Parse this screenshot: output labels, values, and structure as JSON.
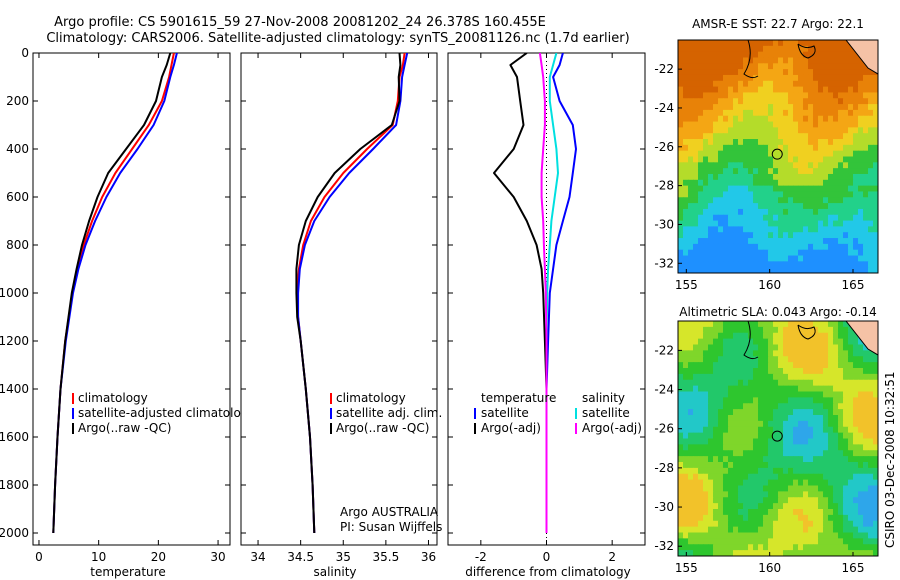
{
  "header": {
    "title_line1": "Argo profile: CS 5901615_59 27-Nov-2008 20081202_24 26.378S 160.455E",
    "title_line2": "Climatology: CARS2006. Satellite-adjusted climatology: synTS_20081126.nc (1.7d earlier)"
  },
  "credit": {
    "org": "Argo AUSTRALIA",
    "pi": "PI: Susan Wijffels",
    "stamp": "CSIRO 03-Dec-2008 10:32:51"
  },
  "colors": {
    "climatology": "#ff0000",
    "satellite": "#0000ff",
    "argo": "#000000",
    "salinity_satellite": "#00e0e0",
    "salinity_argo": "#ff00ff"
  },
  "chart_data": [
    {
      "id": "temperature",
      "type": "line",
      "title": "",
      "xlabel": "temperature",
      "ylabel": "",
      "xlim": [
        -1,
        32
      ],
      "ylim": [
        2050,
        0
      ],
      "xticks": [
        0,
        10,
        20,
        30
      ],
      "yticks": [
        0,
        200,
        400,
        600,
        800,
        1000,
        1200,
        1400,
        1600,
        1800,
        2000
      ],
      "legend": [
        "climatology",
        "satellite-adjusted climatology",
        "Argo(..raw -QC)"
      ],
      "series": [
        {
          "name": "climatology",
          "color": "#ff0000",
          "depth": [
            0,
            50,
            100,
            200,
            300,
            400,
            500,
            600,
            700,
            800,
            900,
            1000,
            1200,
            1400,
            1600,
            1800,
            2000
          ],
          "values": [
            22.6,
            22.2,
            21.8,
            20.6,
            18.4,
            15.6,
            12.8,
            10.6,
            8.9,
            7.5,
            6.4,
            5.6,
            4.4,
            3.6,
            3.1,
            2.7,
            2.4
          ]
        },
        {
          "name": "satellite-adjusted climatology",
          "color": "#0000ff",
          "depth": [
            0,
            50,
            100,
            200,
            300,
            400,
            500,
            600,
            700,
            800,
            900,
            1000,
            1200,
            1400,
            1600,
            1800,
            2000
          ],
          "values": [
            23.1,
            22.6,
            22.0,
            21.0,
            19.2,
            16.5,
            13.6,
            11.3,
            9.4,
            7.8,
            6.6,
            5.7,
            4.5,
            3.6,
            3.1,
            2.7,
            2.4
          ]
        },
        {
          "name": "Argo(..raw -QC)",
          "color": "#000000",
          "depth": [
            0,
            50,
            100,
            200,
            300,
            400,
            500,
            600,
            700,
            800,
            900,
            1000,
            1200,
            1400,
            1600,
            1800,
            2000
          ],
          "values": [
            22.0,
            21.4,
            20.6,
            19.6,
            17.6,
            14.6,
            11.6,
            9.8,
            8.4,
            7.2,
            6.3,
            5.5,
            4.4,
            3.6,
            3.1,
            2.7,
            2.4
          ]
        }
      ]
    },
    {
      "id": "salinity",
      "type": "line",
      "title": "",
      "xlabel": "salinity",
      "ylabel": "",
      "xlim": [
        33.8,
        36.1
      ],
      "ylim": [
        2050,
        0
      ],
      "xticks": [
        34,
        34.5,
        35,
        35.5,
        36
      ],
      "yticks": [
        0,
        200,
        400,
        600,
        800,
        1000,
        1200,
        1400,
        1600,
        1800,
        2000
      ],
      "legend": [
        "climatology",
        "satellite adj. clim.",
        "Argo(..raw -QC)"
      ],
      "series": [
        {
          "name": "climatology",
          "color": "#ff0000",
          "depth": [
            0,
            50,
            100,
            200,
            300,
            400,
            500,
            600,
            700,
            800,
            900,
            1000,
            1100,
            1200,
            1400,
            1600,
            1800,
            2000
          ],
          "values": [
            35.72,
            35.7,
            35.66,
            35.64,
            35.58,
            35.28,
            35.0,
            34.78,
            34.62,
            34.53,
            34.48,
            34.46,
            34.47,
            34.5,
            34.56,
            34.61,
            34.64,
            34.66
          ]
        },
        {
          "name": "satellite adj. clim.",
          "color": "#0000ff",
          "depth": [
            0,
            50,
            100,
            200,
            300,
            400,
            500,
            600,
            700,
            800,
            900,
            1000,
            1100,
            1200,
            1400,
            1600,
            1800,
            2000
          ],
          "values": [
            35.75,
            35.72,
            35.69,
            35.67,
            35.62,
            35.35,
            35.07,
            34.84,
            34.66,
            34.55,
            34.49,
            34.47,
            34.47,
            34.5,
            34.56,
            34.61,
            34.64,
            34.66
          ]
        },
        {
          "name": "Argo(..raw -QC)",
          "color": "#000000",
          "depth": [
            0,
            50,
            100,
            200,
            300,
            400,
            500,
            600,
            700,
            800,
            900,
            1000,
            1100,
            1200,
            1400,
            1600,
            1800,
            2000
          ],
          "values": [
            35.66,
            35.67,
            35.65,
            35.66,
            35.57,
            35.2,
            34.9,
            34.7,
            34.56,
            34.48,
            34.45,
            34.45,
            34.46,
            34.5,
            34.56,
            34.61,
            34.64,
            34.66
          ]
        }
      ]
    },
    {
      "id": "difference",
      "type": "line",
      "title": "",
      "xlabel": "difference from climatology",
      "ylabel": "",
      "xlim": [
        -3,
        3
      ],
      "ylim": [
        2050,
        0
      ],
      "xticks": [
        -2,
        0,
        2
      ],
      "yticks": [
        0,
        200,
        400,
        600,
        800,
        1000,
        1200,
        1400,
        1600,
        1800,
        2000
      ],
      "legend_groups": [
        {
          "title": "temperature",
          "entries": [
            "satellite",
            "Argo(-adj)"
          ]
        },
        {
          "title": "salinity",
          "entries": [
            "satellite",
            "Argo(-adj)"
          ]
        }
      ],
      "series": [
        {
          "name": "temperature satellite",
          "color": "#0000ff",
          "depth": [
            0,
            50,
            100,
            200,
            300,
            400,
            500,
            600,
            700,
            800,
            900,
            1000,
            1200,
            1400,
            1600,
            1800,
            2000
          ],
          "values": [
            0.5,
            0.4,
            0.2,
            0.4,
            0.8,
            0.9,
            0.8,
            0.7,
            0.5,
            0.3,
            0.2,
            0.1,
            0.05,
            0.0,
            0.0,
            0.0,
            0.0
          ]
        },
        {
          "name": "temperature Argo(-adj)",
          "color": "#000000",
          "depth": [
            0,
            50,
            100,
            200,
            300,
            400,
            500,
            600,
            700,
            800,
            900,
            1000,
            1200,
            1400,
            1600,
            1800,
            2000
          ],
          "values": [
            -0.6,
            -1.1,
            -0.9,
            -0.8,
            -0.7,
            -1.0,
            -1.6,
            -1.0,
            -0.6,
            -0.3,
            -0.15,
            -0.1,
            -0.05,
            0.0,
            0.0,
            0.0,
            0.0
          ]
        },
        {
          "name": "salinity satellite",
          "color": "#00e0e0",
          "depth": [
            0,
            50,
            100,
            200,
            300,
            400,
            500,
            600,
            700,
            800,
            900,
            1000,
            1200,
            1400,
            1600,
            1800,
            2000
          ],
          "values": [
            0.3,
            0.2,
            0.1,
            0.1,
            0.2,
            0.3,
            0.35,
            0.25,
            0.15,
            0.1,
            0.05,
            0.02,
            0.0,
            0.0,
            0.0,
            0.0,
            0.0
          ]
        },
        {
          "name": "salinity Argo(-adj)",
          "color": "#ff00ff",
          "depth": [
            0,
            50,
            100,
            200,
            300,
            400,
            500,
            600,
            700,
            800,
            900,
            1000,
            1200,
            1400,
            1600,
            1800,
            2000
          ],
          "values": [
            -0.2,
            -0.15,
            -0.1,
            -0.05,
            -0.05,
            -0.1,
            -0.15,
            -0.15,
            -0.1,
            -0.08,
            -0.05,
            -0.02,
            0.0,
            0.0,
            0.0,
            0.0,
            0.0
          ]
        }
      ]
    },
    {
      "id": "sst-map",
      "type": "heatmap",
      "title": "AMSR-E SST: 22.7  Argo: 22.1",
      "xlabel": "",
      "ylabel": "",
      "xlim": [
        154.5,
        166.5
      ],
      "ylim": [
        -32.5,
        -20.5
      ],
      "xticks": [
        155,
        160,
        165
      ],
      "yticks": [
        -22,
        -24,
        -26,
        -28,
        -30,
        -32
      ],
      "argo_position": {
        "lon": 160.455,
        "lat": -26.378
      }
    },
    {
      "id": "sla-map",
      "type": "heatmap",
      "title": "Altimetric SLA: 0.043  Argo: -0.14",
      "xlabel": "",
      "ylabel": "",
      "xlim": [
        154.5,
        166.5
      ],
      "ylim": [
        -32.5,
        -20.5
      ],
      "xticks": [
        155,
        160,
        165
      ],
      "yticks": [
        -22,
        -24,
        -26,
        -28,
        -30,
        -32
      ],
      "argo_position": {
        "lon": 160.455,
        "lat": -26.378
      }
    }
  ]
}
